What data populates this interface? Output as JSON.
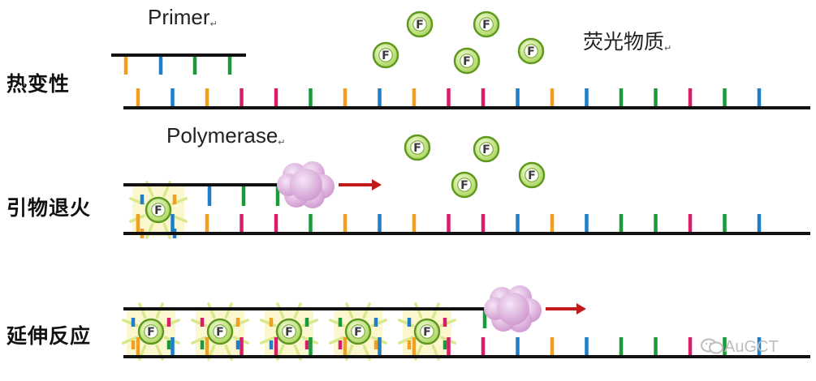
{
  "stages": {
    "denaturation": "热变性",
    "annealing": "引物退火",
    "extension": "延伸反应"
  },
  "labels": {
    "primer": "Primer",
    "polymerase": "Polymerase",
    "fluorescent": "荧光物质",
    "return_mark": "↵"
  },
  "probe_letter": "F",
  "watermark": "AuGCT",
  "colors": {
    "orange": "#f0a020",
    "blue": "#1e7fc8",
    "green": "#1a9a3a",
    "magenta": "#d81e6a",
    "strand": "#111111",
    "probe_fill": "#c5e47a",
    "probe_stroke": "#5f9a1e",
    "polymerase": "#d8a6d8",
    "arrow": "#c21a1a"
  },
  "template_sequence": [
    "orange",
    "blue",
    "orange",
    "magenta",
    "magenta",
    "green",
    "orange",
    "blue",
    "orange",
    "magenta",
    "magenta",
    "blue",
    "orange",
    "blue",
    "green",
    "green",
    "magenta",
    "green",
    "blue"
  ]
}
